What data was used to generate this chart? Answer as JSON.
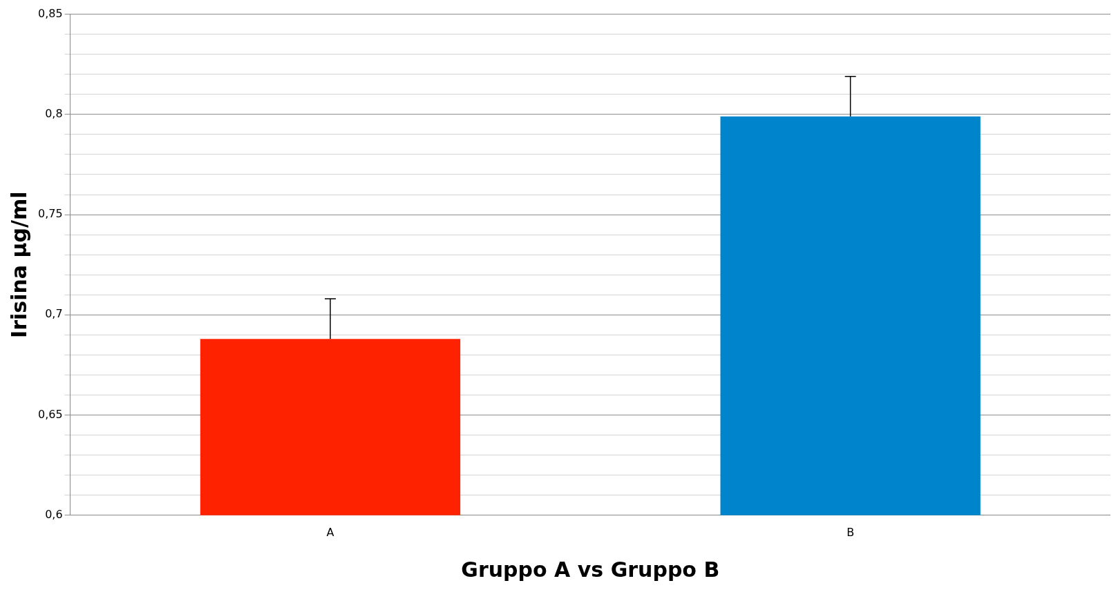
{
  "chart_data": {
    "type": "bar",
    "xlabel": "Gruppo A vs Gruppo B",
    "ylabel": "Irisina µg/ml",
    "categories": [
      "A",
      "B"
    ],
    "values": [
      0.688,
      0.799
    ],
    "colors": [
      "#ff2200",
      "#0084cc"
    ],
    "errors": [
      [
        0.688,
        0.708
      ],
      [
        0.799,
        0.819
      ]
    ],
    "ylim": [
      0.6,
      0.85
    ],
    "yticks": [
      {
        "value": 0.6,
        "label": "0,6"
      },
      {
        "value": 0.61,
        "label": null
      },
      {
        "value": 0.62,
        "label": null
      },
      {
        "value": 0.63,
        "label": null
      },
      {
        "value": 0.64,
        "label": null
      },
      {
        "value": 0.65,
        "label": "0,65"
      },
      {
        "value": 0.66,
        "label": null
      },
      {
        "value": 0.67,
        "label": null
      },
      {
        "value": 0.68,
        "label": null
      },
      {
        "value": 0.69,
        "label": null
      },
      {
        "value": 0.7,
        "label": "0,7"
      },
      {
        "value": 0.71,
        "label": null
      },
      {
        "value": 0.72,
        "label": null
      },
      {
        "value": 0.73,
        "label": null
      },
      {
        "value": 0.74,
        "label": null
      },
      {
        "value": 0.75,
        "label": "0,75"
      },
      {
        "value": 0.76,
        "label": null
      },
      {
        "value": 0.77,
        "label": null
      },
      {
        "value": 0.78,
        "label": null
      },
      {
        "value": 0.79,
        "label": null
      },
      {
        "value": 0.8,
        "label": "0,8"
      },
      {
        "value": 0.81,
        "label": null
      },
      {
        "value": 0.82,
        "label": null
      },
      {
        "value": 0.83,
        "label": null
      },
      {
        "value": 0.84,
        "label": null
      },
      {
        "value": 0.85,
        "label": "0,85"
      }
    ],
    "grid": "y",
    "legend": false
  }
}
